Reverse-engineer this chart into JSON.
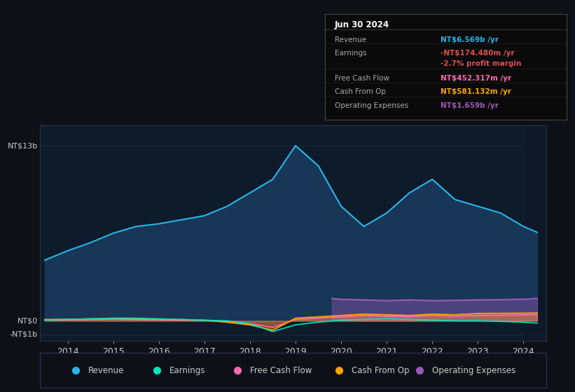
{
  "background_color": "#0d1117",
  "plot_bg_color": "#0d1b2a",
  "x_years": [
    2013.5,
    2014,
    2014.25,
    2014.5,
    2015,
    2015.5,
    2016,
    2016.5,
    2017,
    2017.5,
    2018,
    2018.5,
    2019,
    2019.5,
    2020,
    2020.5,
    2021,
    2021.5,
    2022,
    2022.5,
    2023,
    2023.5,
    2024,
    2024.3
  ],
  "revenue": [
    4.5,
    5.2,
    5.5,
    5.8,
    6.5,
    7.0,
    7.2,
    7.5,
    7.8,
    8.5,
    9.5,
    10.5,
    13.0,
    11.5,
    8.5,
    7.0,
    8.0,
    9.5,
    10.5,
    9.0,
    8.5,
    8.0,
    7.0,
    6.569
  ],
  "earnings": [
    0.05,
    0.1,
    0.12,
    0.15,
    0.2,
    0.2,
    0.15,
    0.1,
    0.05,
    0.0,
    -0.2,
    -0.8,
    -0.3,
    -0.1,
    0.05,
    0.1,
    0.15,
    0.1,
    0.05,
    0.0,
    0.0,
    -0.05,
    -0.1,
    -0.174
  ],
  "free_cash_flow": [
    0.05,
    0.08,
    0.09,
    0.1,
    0.12,
    0.1,
    0.08,
    0.05,
    0.02,
    -0.05,
    -0.2,
    -0.5,
    0.1,
    0.2,
    0.3,
    0.4,
    0.35,
    0.3,
    0.4,
    0.35,
    0.4,
    0.42,
    0.44,
    0.452
  ],
  "cash_from_op": [
    0.1,
    0.12,
    0.13,
    0.15,
    0.18,
    0.15,
    0.12,
    0.1,
    0.05,
    -0.1,
    -0.3,
    -0.7,
    0.2,
    0.3,
    0.4,
    0.5,
    0.45,
    0.4,
    0.5,
    0.45,
    0.55,
    0.56,
    0.57,
    0.581
  ],
  "op_exp_x": [
    2019.8,
    2020,
    2020.5,
    2021,
    2021.5,
    2022,
    2022.5,
    2023,
    2023.5,
    2024,
    2024.3
  ],
  "operating_expenses": [
    1.65,
    1.6,
    1.55,
    1.5,
    1.55,
    1.5,
    1.52,
    1.55,
    1.57,
    1.6,
    1.659
  ],
  "revenue_color": "#29b5e8",
  "revenue_fill": "#1a3a5c",
  "earnings_color": "#00e5c0",
  "free_cash_flow_color": "#ff69b4",
  "cash_from_op_color": "#ffa500",
  "operating_expenses_color": "#9b59b6",
  "info_box": {
    "title": "Jun 30 2024",
    "rows": [
      {
        "label": "Revenue",
        "value": "NT$6.569b /yr",
        "value_color": "#29b5e8",
        "label_color": "#aaaaaa"
      },
      {
        "label": "Earnings",
        "value": "-NT$174.480m /yr",
        "value_color": "#e05050",
        "label_color": "#aaaaaa"
      },
      {
        "label": "",
        "value": "-2.7% profit margin",
        "value_color": "#e05050",
        "label_color": "#888888"
      },
      {
        "label": "Free Cash Flow",
        "value": "NT$452.317m /yr",
        "value_color": "#ff69b4",
        "label_color": "#aaaaaa"
      },
      {
        "label": "Cash From Op",
        "value": "NT$581.132m /yr",
        "value_color": "#ffa500",
        "label_color": "#aaaaaa"
      },
      {
        "label": "Operating Expenses",
        "value": "NT$1.659b /yr",
        "value_color": "#9b59b6",
        "label_color": "#aaaaaa"
      }
    ]
  },
  "legend": [
    {
      "label": "Revenue",
      "color": "#29b5e8"
    },
    {
      "label": "Earnings",
      "color": "#00e5c0"
    },
    {
      "label": "Free Cash Flow",
      "color": "#ff69b4"
    },
    {
      "label": "Cash From Op",
      "color": "#ffa500"
    },
    {
      "label": "Operating Expenses",
      "color": "#9b59b6"
    }
  ],
  "xlim": [
    2013.4,
    2024.5
  ],
  "ylim": [
    -1.5,
    14.5
  ],
  "xticks": [
    2014,
    2015,
    2016,
    2017,
    2018,
    2019,
    2020,
    2021,
    2022,
    2023,
    2024
  ],
  "grid_color": "#1e2d3d",
  "text_color": "#cccccc",
  "axis_color": "#334455"
}
